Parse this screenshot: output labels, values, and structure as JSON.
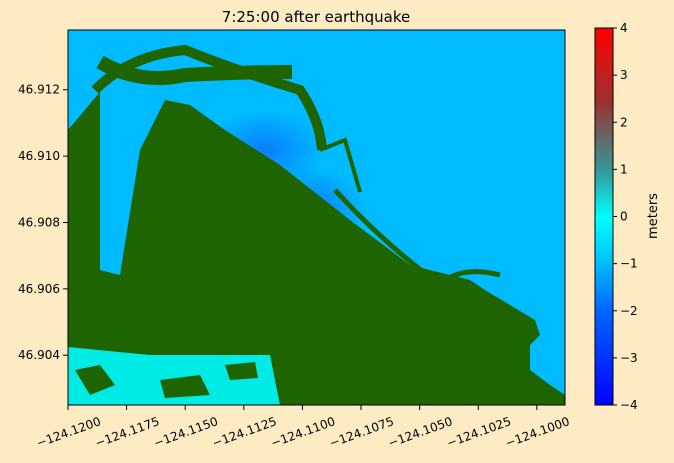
{
  "chart_data": {
    "type": "heatmap",
    "title": "7:25:00 after earthquake",
    "x": {
      "ticks": [
        -124.12,
        -124.1175,
        -124.115,
        -124.1125,
        -124.11,
        -124.1075,
        -124.105,
        -124.1025,
        -124.1
      ],
      "tick_labels": [
        "−124.1200",
        "−124.1175",
        "−124.1150",
        "−124.1125",
        "−124.1100",
        "−124.1075",
        "−124.1050",
        "−124.1025",
        "−124.1000"
      ],
      "range": [
        -124.12,
        -124.0988
      ]
    },
    "y": {
      "ticks": [
        46.904,
        46.906,
        46.908,
        46.91,
        46.912
      ],
      "tick_labels": [
        "46.904",
        "46.906",
        "46.908",
        "46.910",
        "46.912"
      ],
      "range": [
        46.9025,
        46.9138
      ]
    },
    "colorbar": {
      "label": "meters",
      "range": [
        -4,
        4
      ],
      "ticks": [
        -4,
        -3,
        -2,
        -1,
        0,
        1,
        2,
        3,
        4
      ],
      "tick_labels": [
        "−4",
        "−3",
        "−2",
        "−1",
        "0",
        "1",
        "2",
        "3",
        "4"
      ],
      "colors": [
        "#0000ff",
        "#0066ff",
        "#00ccff",
        "#00ffff",
        "#339999",
        "#993333",
        "#ff0000"
      ]
    },
    "land_color": "#1e6400",
    "field": {
      "dominant_value": -1.0,
      "deepest_value": -1.6,
      "nearshore_value": 0.1
    }
  }
}
